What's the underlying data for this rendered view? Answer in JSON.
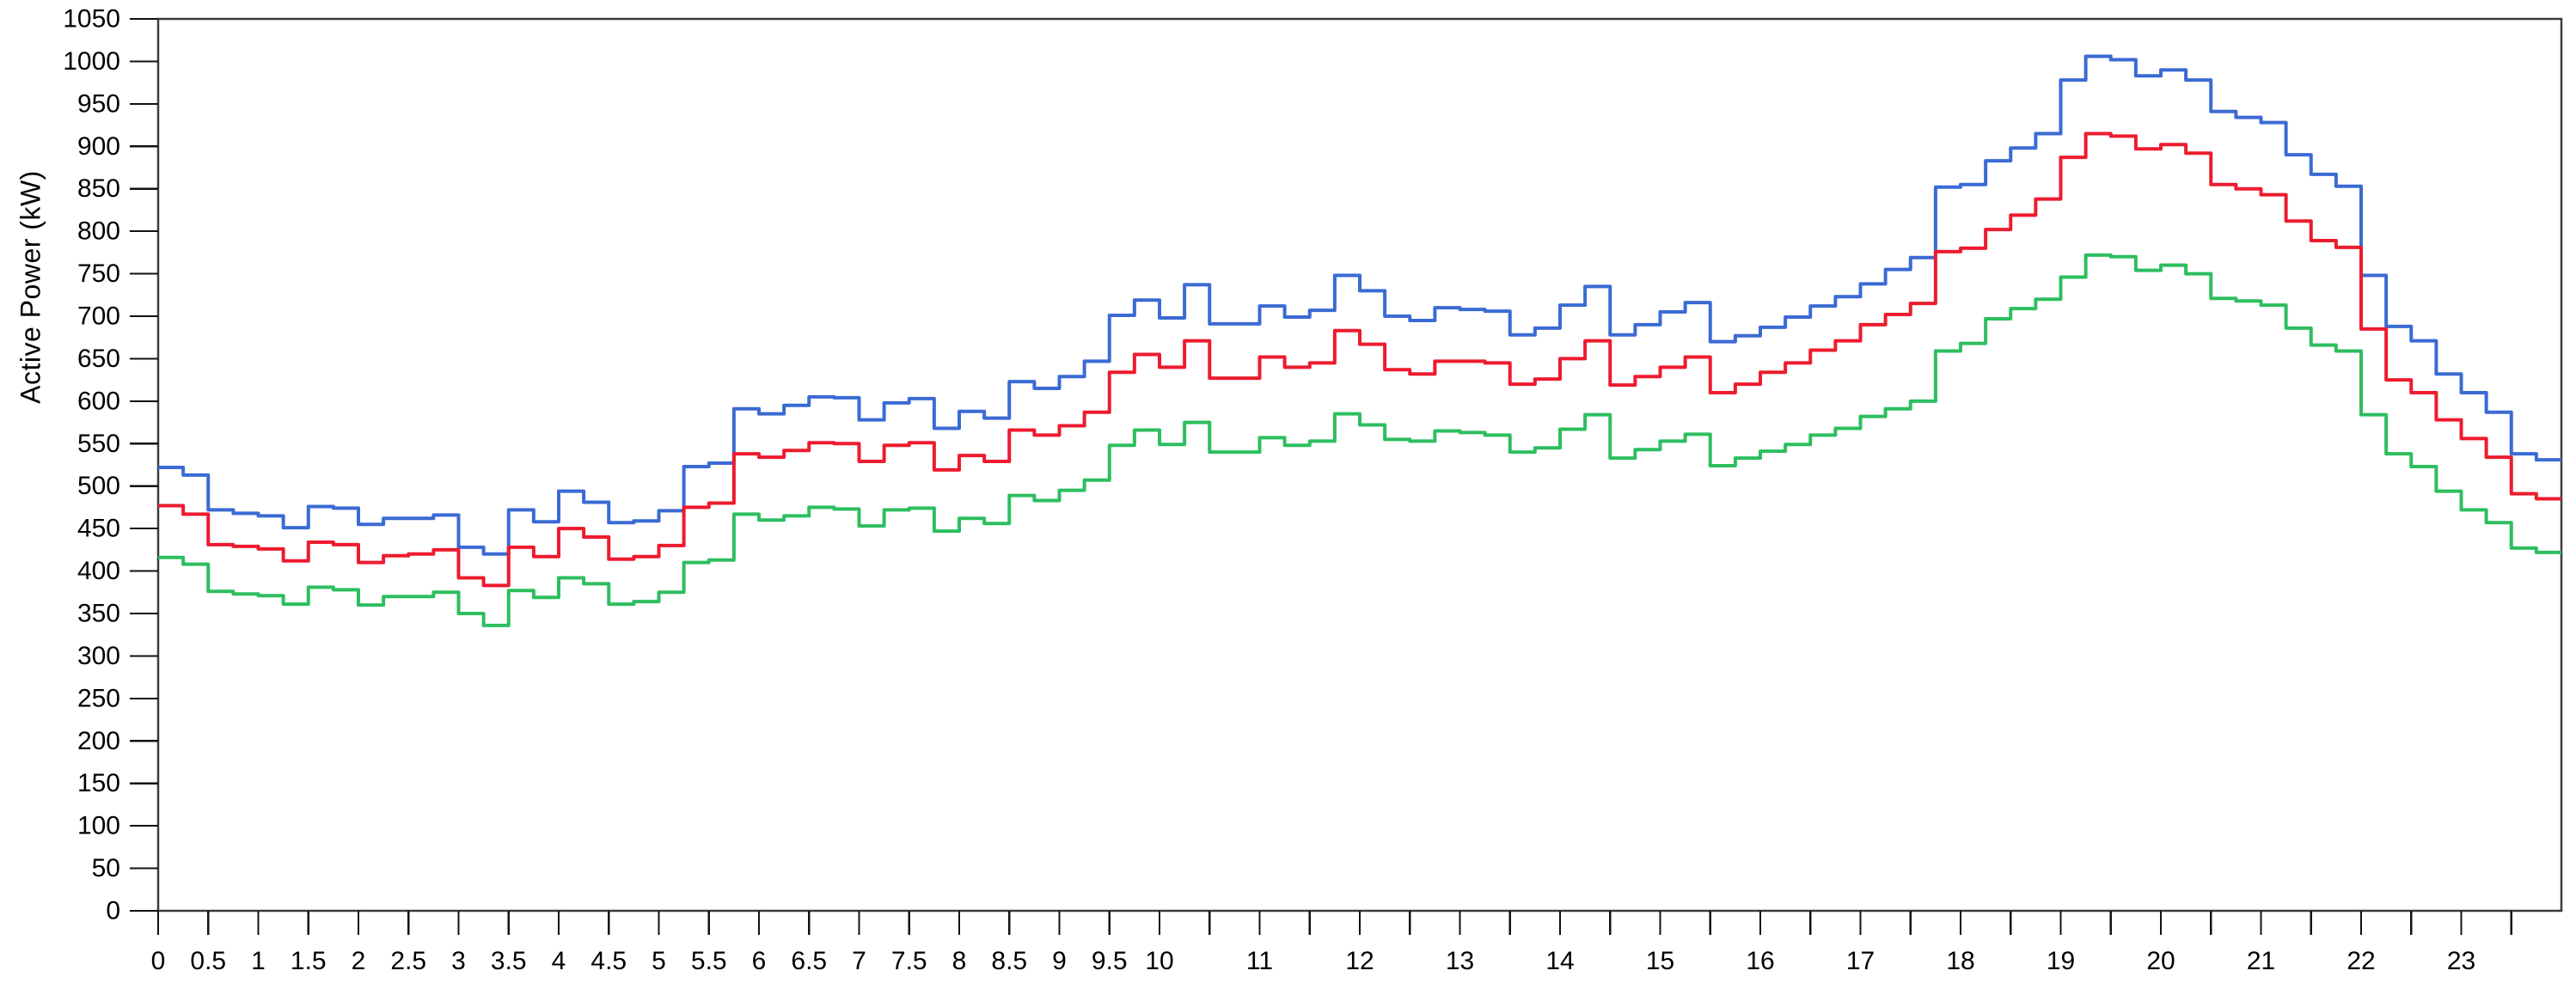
{
  "chart_data": {
    "type": "line",
    "subtype": "step",
    "title": "",
    "xlabel": "",
    "ylabel": "Active Power (kW)",
    "xlim": [
      0,
      24
    ],
    "ylim": [
      0,
      1050
    ],
    "grid": "off",
    "legend": "none",
    "x_start": 0,
    "x_step_hours": 0.25,
    "y_ticks": [
      0,
      50,
      100,
      150,
      200,
      250,
      300,
      350,
      400,
      450,
      500,
      550,
      600,
      650,
      700,
      750,
      800,
      850,
      900,
      950,
      1000,
      1050
    ],
    "x_ticks": [
      {
        "t": 0,
        "label": "0"
      },
      {
        "t": 0.5,
        "label": "0.5"
      },
      {
        "t": 1,
        "label": "1"
      },
      {
        "t": 1.5,
        "label": "1.5"
      },
      {
        "t": 2,
        "label": "2"
      },
      {
        "t": 2.5,
        "label": "2.5"
      },
      {
        "t": 3,
        "label": "3"
      },
      {
        "t": 3.5,
        "label": "3.5"
      },
      {
        "t": 4,
        "label": "4"
      },
      {
        "t": 4.5,
        "label": "4.5"
      },
      {
        "t": 5,
        "label": "5"
      },
      {
        "t": 5.5,
        "label": "5.5"
      },
      {
        "t": 6,
        "label": "6"
      },
      {
        "t": 6.5,
        "label": "6.5"
      },
      {
        "t": 7,
        "label": "7"
      },
      {
        "t": 7.5,
        "label": "7.5"
      },
      {
        "t": 8,
        "label": "8"
      },
      {
        "t": 8.5,
        "label": "8.5"
      },
      {
        "t": 9,
        "label": "9"
      },
      {
        "t": 9.5,
        "label": "9.5"
      },
      {
        "t": 10,
        "label": "10"
      },
      {
        "t": 10.5,
        "label": ""
      },
      {
        "t": 11,
        "label": "11"
      },
      {
        "t": 11.5,
        "label": ""
      },
      {
        "t": 12,
        "label": "12"
      },
      {
        "t": 12.5,
        "label": ""
      },
      {
        "t": 13,
        "label": "13"
      },
      {
        "t": 13.5,
        "label": ""
      },
      {
        "t": 14,
        "label": "14"
      },
      {
        "t": 14.5,
        "label": ""
      },
      {
        "t": 15,
        "label": "15"
      },
      {
        "t": 15.5,
        "label": ""
      },
      {
        "t": 16,
        "label": "16"
      },
      {
        "t": 16.5,
        "label": ""
      },
      {
        "t": 17,
        "label": "17"
      },
      {
        "t": 17.5,
        "label": ""
      },
      {
        "t": 18,
        "label": "18"
      },
      {
        "t": 18.5,
        "label": ""
      },
      {
        "t": 19,
        "label": "19"
      },
      {
        "t": 19.5,
        "label": ""
      },
      {
        "t": 20,
        "label": "20"
      },
      {
        "t": 20.5,
        "label": ""
      },
      {
        "t": 21,
        "label": "21"
      },
      {
        "t": 21.5,
        "label": ""
      },
      {
        "t": 22,
        "label": "22"
      },
      {
        "t": 22.5,
        "label": ""
      },
      {
        "t": 23,
        "label": "23"
      },
      {
        "t": 23.5,
        "label": ""
      }
    ],
    "series": [
      {
        "name": "blue-upper",
        "color": "#3A6AD4",
        "values": [
          522,
          513,
          472,
          468,
          465,
          451,
          476,
          474,
          455,
          462,
          462,
          466,
          428,
          420,
          472,
          458,
          494,
          481,
          457,
          459,
          471,
          523,
          527,
          591,
          585,
          595,
          605,
          604,
          578,
          598,
          603,
          568,
          588,
          580,
          623,
          615,
          629,
          647,
          701,
          719,
          698,
          737,
          691,
          691,
          712,
          699,
          707,
          748,
          730,
          700,
          695,
          710,
          708,
          706,
          678,
          686,
          713,
          735,
          678,
          690,
          705,
          716,
          670,
          677,
          687,
          699,
          712,
          723,
          738,
          755,
          769,
          852,
          855,
          883,
          898,
          915,
          978,
          1006,
          1002,
          983,
          990,
          978,
          941,
          934,
          928,
          890,
          867,
          853,
          748,
          688,
          671,
          632,
          610,
          587,
          538,
          531
        ]
      },
      {
        "name": "red-middle",
        "color": "#ED1B2E",
        "values": [
          477,
          467,
          431,
          429,
          426,
          412,
          434,
          431,
          410,
          418,
          420,
          425,
          392,
          383,
          428,
          417,
          450,
          440,
          414,
          417,
          430,
          475,
          480,
          538,
          534,
          542,
          551,
          550,
          529,
          548,
          551,
          519,
          536,
          529,
          566,
          560,
          571,
          587,
          634,
          655,
          640,
          671,
          627,
          627,
          652,
          640,
          645,
          683,
          667,
          637,
          632,
          647,
          647,
          645,
          620,
          626,
          650,
          671,
          619,
          629,
          640,
          652,
          610,
          620,
          634,
          645,
          660,
          671,
          690,
          702,
          715,
          776,
          780,
          802,
          819,
          838,
          887,
          915,
          912,
          897,
          902,
          892,
          855,
          850,
          843,
          812,
          789,
          781,
          685,
          625,
          610,
          578,
          556,
          534,
          491,
          485
        ]
      },
      {
        "name": "green-lower",
        "color": "#2DBE5F",
        "values": [
          416,
          408,
          376,
          373,
          371,
          361,
          381,
          378,
          360,
          370,
          370,
          375,
          350,
          336,
          377,
          369,
          392,
          385,
          361,
          364,
          375,
          410,
          413,
          467,
          460,
          465,
          475,
          473,
          453,
          472,
          474,
          447,
          462,
          456,
          489,
          483,
          495,
          507,
          548,
          566,
          549,
          575,
          540,
          540,
          557,
          548,
          553,
          585,
          572,
          555,
          553,
          565,
          563,
          560,
          540,
          545,
          567,
          584,
          533,
          543,
          553,
          561,
          524,
          533,
          541,
          549,
          560,
          568,
          582,
          591,
          600,
          659,
          668,
          697,
          709,
          720,
          746,
          772,
          770,
          754,
          760,
          750,
          721,
          718,
          713,
          686,
          666,
          659,
          584,
          538,
          523,
          494,
          472,
          457,
          427,
          422
        ]
      }
    ]
  }
}
